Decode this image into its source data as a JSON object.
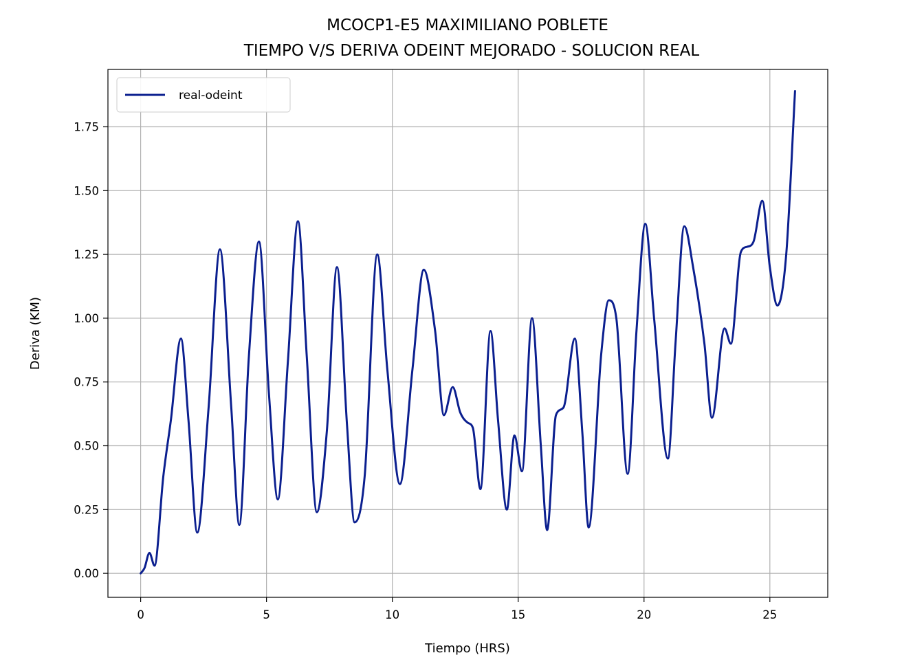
{
  "chart_data": {
    "type": "line",
    "title": "MCOCP1-E5 MAXIMILIANO POBLETE",
    "subtitle": "TIEMPO V/S DERIVA ODEINT MEJORADO - SOLUCION REAL",
    "xlabel": "Tiempo (HRS)",
    "ylabel": "Deriva (KM)",
    "xlim": [
      -1.3,
      27.3
    ],
    "ylim": [
      -0.094,
      1.975
    ],
    "x_ticks": [
      0,
      5,
      10,
      15,
      20,
      25
    ],
    "x_tick_labels": [
      "0",
      "5",
      "10",
      "15",
      "20",
      "25"
    ],
    "y_ticks": [
      0.0,
      0.25,
      0.5,
      0.75,
      1.0,
      1.25,
      1.5,
      1.75
    ],
    "y_tick_labels": [
      "0.00",
      "0.25",
      "0.50",
      "0.75",
      "1.00",
      "1.25",
      "1.50",
      "1.75"
    ],
    "grid": true,
    "legend_position": "upper-left",
    "series": [
      {
        "name": "real-odeint",
        "color": "#0b1f8f",
        "x": [
          0,
          0.15,
          0.35,
          0.55,
          0.9,
          1.2,
          1.6,
          1.9,
          2.25,
          2.7,
          3.15,
          3.6,
          3.92,
          4.3,
          4.7,
          5.1,
          5.45,
          5.85,
          6.25,
          6.6,
          7.0,
          7.4,
          7.8,
          8.2,
          8.5,
          8.9,
          9.4,
          9.8,
          10.3,
          10.8,
          11.25,
          11.7,
          12.05,
          12.4,
          12.7,
          13.0,
          13.2,
          13.5,
          13.9,
          14.2,
          14.55,
          14.85,
          15.15,
          15.55,
          15.9,
          16.15,
          16.5,
          16.8,
          17.25,
          17.55,
          17.8,
          18.3,
          18.6,
          18.9,
          19.35,
          19.7,
          20.05,
          20.4,
          20.95,
          21.25,
          21.6,
          21.95,
          22.4,
          22.7,
          23.2,
          23.45,
          23.85,
          24.1,
          24.35,
          24.7,
          25.0,
          25.3,
          25.65,
          26.0
        ],
        "y": [
          0.0,
          0.02,
          0.08,
          0.03,
          0.38,
          0.6,
          0.92,
          0.6,
          0.16,
          0.65,
          1.27,
          0.65,
          0.19,
          0.85,
          1.3,
          0.7,
          0.29,
          0.83,
          1.38,
          0.85,
          0.24,
          0.56,
          1.2,
          0.58,
          0.2,
          0.38,
          1.25,
          0.8,
          0.35,
          0.8,
          1.19,
          0.95,
          0.62,
          0.73,
          0.63,
          0.59,
          0.57,
          0.33,
          0.95,
          0.6,
          0.25,
          0.54,
          0.4,
          1.0,
          0.5,
          0.17,
          0.62,
          0.65,
          0.92,
          0.55,
          0.18,
          0.86,
          1.07,
          1.0,
          0.39,
          0.95,
          1.37,
          1.0,
          0.45,
          0.9,
          1.36,
          1.2,
          0.9,
          0.61,
          0.96,
          0.9,
          1.26,
          1.28,
          1.3,
          1.46,
          1.2,
          1.05,
          1.25,
          1.89
        ]
      }
    ]
  }
}
